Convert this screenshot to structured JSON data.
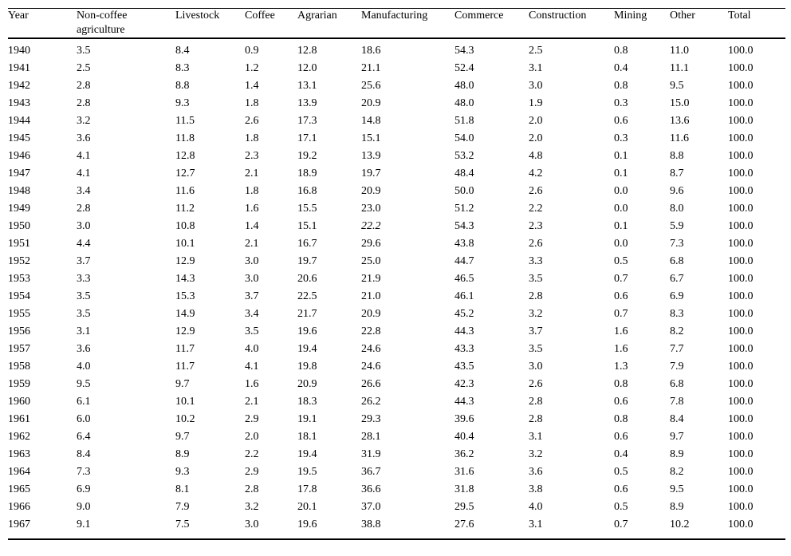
{
  "colors": {
    "background": "#ffffff",
    "text": "#000000",
    "rule": "#000000"
  },
  "chart_data": {
    "type": "table",
    "columns": [
      "Year",
      "Non-coffee agriculture",
      "Livestock",
      "Coffee",
      "Agrarian",
      "Manufacturing",
      "Commerce",
      "Construction",
      "Mining",
      "Other",
      "Total"
    ],
    "rows": [
      [
        "1940",
        "3.5",
        "8.4",
        "0.9",
        "12.8",
        "18.6",
        "54.3",
        "2.5",
        "0.8",
        "11.0",
        "100.0"
      ],
      [
        "1941",
        "2.5",
        "8.3",
        "1.2",
        "12.0",
        "21.1",
        "52.4",
        "3.1",
        "0.4",
        "11.1",
        "100.0"
      ],
      [
        "1942",
        "2.8",
        "8.8",
        "1.4",
        "13.1",
        "25.6",
        "48.0",
        "3.0",
        "0.8",
        "9.5",
        "100.0"
      ],
      [
        "1943",
        "2.8",
        "9.3",
        "1.8",
        "13.9",
        "20.9",
        "48.0",
        "1.9",
        "0.3",
        "15.0",
        "100.0"
      ],
      [
        "1944",
        "3.2",
        "11.5",
        "2.6",
        "17.3",
        "14.8",
        "51.8",
        "2.0",
        "0.6",
        "13.6",
        "100.0"
      ],
      [
        "1945",
        "3.6",
        "11.8",
        "1.8",
        "17.1",
        "15.1",
        "54.0",
        "2.0",
        "0.3",
        "11.6",
        "100.0"
      ],
      [
        "1946",
        "4.1",
        "12.8",
        "2.3",
        "19.2",
        "13.9",
        "53.2",
        "4.8",
        "0.1",
        "8.8",
        "100.0"
      ],
      [
        "1947",
        "4.1",
        "12.7",
        "2.1",
        "18.9",
        "19.7",
        "48.4",
        "4.2",
        "0.1",
        "8.7",
        "100.0"
      ],
      [
        "1948",
        "3.4",
        "11.6",
        "1.8",
        "16.8",
        "20.9",
        "50.0",
        "2.6",
        "0.0",
        "9.6",
        "100.0"
      ],
      [
        "1949",
        "2.8",
        "11.2",
        "1.6",
        "15.5",
        "23.0",
        "51.2",
        "2.2",
        "0.0",
        "8.0",
        "100.0"
      ],
      [
        "1950",
        "3.0",
        "10.8",
        "1.4",
        "15.1",
        "22.2",
        "54.3",
        "2.3",
        "0.1",
        "5.9",
        "100.0"
      ],
      [
        "1951",
        "4.4",
        "10.1",
        "2.1",
        "16.7",
        "29.6",
        "43.8",
        "2.6",
        "0.0",
        "7.3",
        "100.0"
      ],
      [
        "1952",
        "3.7",
        "12.9",
        "3.0",
        "19.7",
        "25.0",
        "44.7",
        "3.3",
        "0.5",
        "6.8",
        "100.0"
      ],
      [
        "1953",
        "3.3",
        "14.3",
        "3.0",
        "20.6",
        "21.9",
        "46.5",
        "3.5",
        "0.7",
        "6.7",
        "100.0"
      ],
      [
        "1954",
        "3.5",
        "15.3",
        "3.7",
        "22.5",
        "21.0",
        "46.1",
        "2.8",
        "0.6",
        "6.9",
        "100.0"
      ],
      [
        "1955",
        "3.5",
        "14.9",
        "3.4",
        "21.7",
        "20.9",
        "45.2",
        "3.2",
        "0.7",
        "8.3",
        "100.0"
      ],
      [
        "1956",
        "3.1",
        "12.9",
        "3.5",
        "19.6",
        "22.8",
        "44.3",
        "3.7",
        "1.6",
        "8.2",
        "100.0"
      ],
      [
        "1957",
        "3.6",
        "11.7",
        "4.0",
        "19.4",
        "24.6",
        "43.3",
        "3.5",
        "1.6",
        "7.7",
        "100.0"
      ],
      [
        "1958",
        "4.0",
        "11.7",
        "4.1",
        "19.8",
        "24.6",
        "43.5",
        "3.0",
        "1.3",
        "7.9",
        "100.0"
      ],
      [
        "1959",
        "9.5",
        "9.7",
        "1.6",
        "20.9",
        "26.6",
        "42.3",
        "2.6",
        "0.8",
        "6.8",
        "100.0"
      ],
      [
        "1960",
        "6.1",
        "10.1",
        "2.1",
        "18.3",
        "26.2",
        "44.3",
        "2.8",
        "0.6",
        "7.8",
        "100.0"
      ],
      [
        "1961",
        "6.0",
        "10.2",
        "2.9",
        "19.1",
        "29.3",
        "39.6",
        "2.8",
        "0.8",
        "8.4",
        "100.0"
      ],
      [
        "1962",
        "6.4",
        "9.7",
        "2.0",
        "18.1",
        "28.1",
        "40.4",
        "3.1",
        "0.6",
        "9.7",
        "100.0"
      ],
      [
        "1963",
        "8.4",
        "8.9",
        "2.2",
        "19.4",
        "31.9",
        "36.2",
        "3.2",
        "0.4",
        "8.9",
        "100.0"
      ],
      [
        "1964",
        "7.3",
        "9.3",
        "2.9",
        "19.5",
        "36.7",
        "31.6",
        "3.6",
        "0.5",
        "8.2",
        "100.0"
      ],
      [
        "1965",
        "6.9",
        "8.1",
        "2.8",
        "17.8",
        "36.6",
        "31.8",
        "3.8",
        "0.6",
        "9.5",
        "100.0"
      ],
      [
        "1966",
        "9.0",
        "7.9",
        "3.2",
        "20.1",
        "37.0",
        "29.5",
        "4.0",
        "0.5",
        "8.9",
        "100.0"
      ],
      [
        "1967",
        "9.1",
        "7.5",
        "3.0",
        "19.6",
        "38.8",
        "27.6",
        "3.1",
        "0.7",
        "10.2",
        "100.0"
      ]
    ],
    "italic_cells": [
      [
        10,
        5
      ]
    ]
  }
}
